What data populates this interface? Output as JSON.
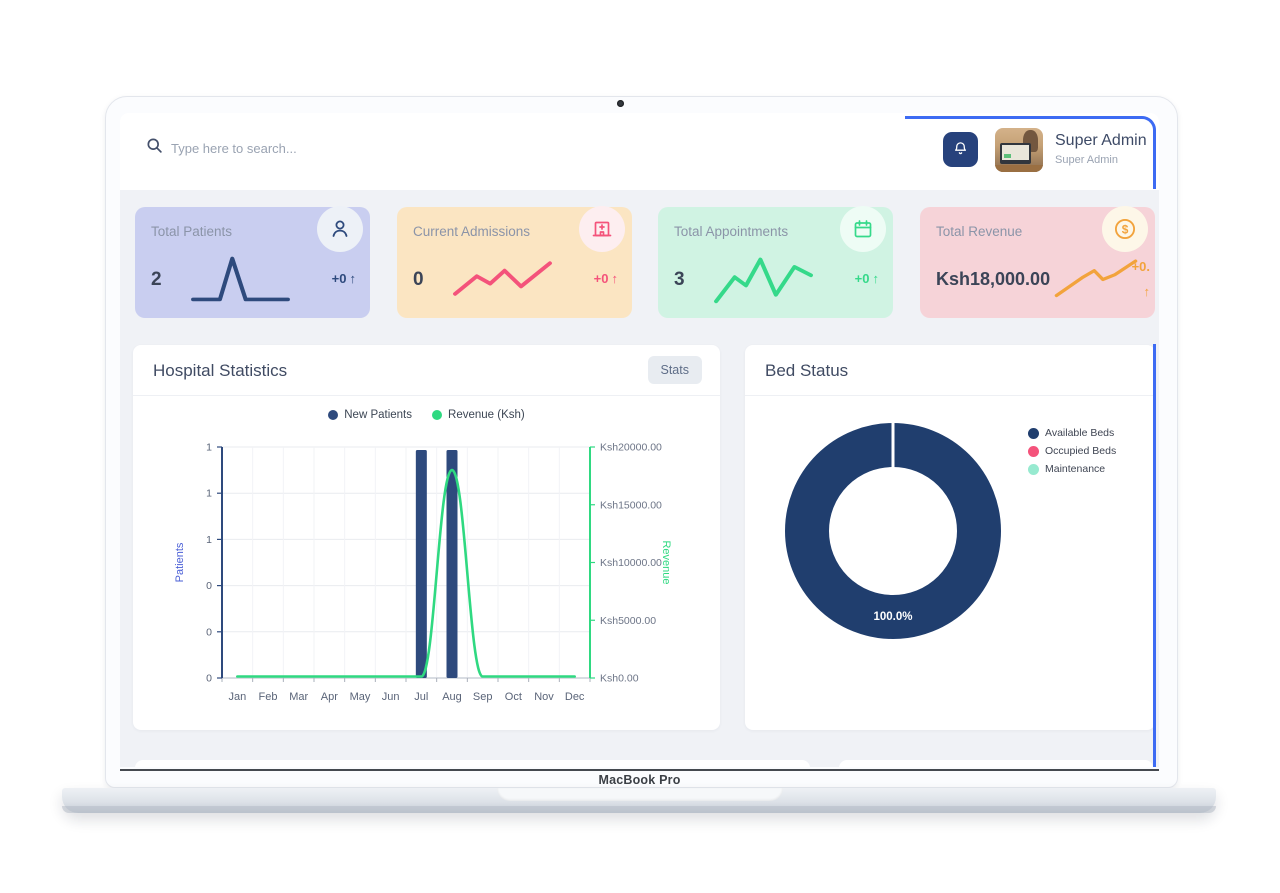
{
  "device": {
    "label": "MacBook Pro"
  },
  "header": {
    "search_placeholder": "Type here to search...",
    "user_name": "Super Admin",
    "user_role": "Super Admin",
    "accent_outline_color": "#3d6bf3"
  },
  "stat_cards": [
    {
      "title": "Total Patients",
      "value": "2",
      "change": "+0",
      "arrow": "↑",
      "icon": "user-icon",
      "bg": "#c9cef0",
      "accent": "#2e4a7d",
      "icon_bg": "#edf1f7",
      "icon_color": "#2e4a7d",
      "spark": [
        [
          4,
          50
        ],
        [
          30,
          50
        ],
        [
          42,
          6
        ],
        [
          55,
          50
        ],
        [
          96,
          50
        ]
      ]
    },
    {
      "title": "Current Admissions",
      "value": "0",
      "change": "+0",
      "arrow": "↑",
      "icon": "hospital-icon",
      "bg": "#fbe5c2",
      "accent": "#f4537b",
      "icon_bg": "#fdeef0",
      "icon_color": "#f4537b",
      "spark": [
        [
          4,
          44
        ],
        [
          25,
          25
        ],
        [
          38,
          33
        ],
        [
          52,
          19
        ],
        [
          68,
          36
        ],
        [
          96,
          11
        ]
      ]
    },
    {
      "title": "Total Appointments",
      "value": "3",
      "change": "+0",
      "arrow": "↑",
      "icon": "calendar-icon",
      "bg": "#d0f3e3",
      "accent": "#35d98a",
      "icon_bg": "#eefcf5",
      "icon_color": "#35d98a",
      "spark": [
        [
          4,
          52
        ],
        [
          22,
          26
        ],
        [
          33,
          35
        ],
        [
          47,
          7
        ],
        [
          62,
          45
        ],
        [
          80,
          15
        ],
        [
          96,
          24
        ]
      ]
    },
    {
      "title": "Total Revenue",
      "value": "Ksh18,000.00",
      "change": "+0.",
      "arrow": "↑",
      "icon": "dollar-icon",
      "bg": "#f6d3d8",
      "accent": "#f2a33c",
      "icon_bg": "#fdf7e8",
      "icon_color": "#f2a33c",
      "spark": [
        [
          4,
          48
        ],
        [
          35,
          25
        ],
        [
          48,
          17
        ],
        [
          58,
          28
        ],
        [
          72,
          22
        ],
        [
          96,
          5
        ]
      ]
    }
  ],
  "hospital_stats_panel": {
    "title": "Hospital Statistics",
    "button_label": "Stats"
  },
  "bed_status_panel": {
    "title": "Bed Status",
    "center_label": "100.0%",
    "legend": [
      {
        "label": "Available Beds",
        "color": "#203e6e"
      },
      {
        "label": "Occupied Beds",
        "color": "#f4537b"
      },
      {
        "label": "Maintenance",
        "color": "#97ead0"
      }
    ]
  },
  "chart_data": [
    {
      "type": "bar",
      "title": "Hospital Statistics",
      "categories": [
        "Jan",
        "Feb",
        "Mar",
        "Apr",
        "May",
        "Jun",
        "Jul",
        "Aug",
        "Sep",
        "Oct",
        "Nov",
        "Dec"
      ],
      "series": [
        {
          "name": "New Patients",
          "type": "bar",
          "axis": "left",
          "color": "#2e4a7d",
          "values": [
            0,
            0,
            0,
            0,
            0,
            0,
            1,
            1,
            0,
            0,
            0,
            0
          ]
        },
        {
          "name": "Revenue (Ksh)",
          "type": "line",
          "axis": "right",
          "color": "#2fd981",
          "values": [
            0,
            0,
            0,
            0,
            0,
            0,
            0,
            18000,
            0,
            0,
            0,
            0
          ]
        }
      ],
      "left_axis": {
        "label": "Patients",
        "range": [
          0,
          1
        ],
        "ticks": [
          "1",
          "1",
          "1",
          "0",
          "0",
          "0"
        ],
        "color": "#2e4a7d",
        "title_color": "#4a5fd6"
      },
      "right_axis": {
        "label": "Revenue",
        "range": [
          0,
          20000
        ],
        "ticks": [
          "Ksh20000.00",
          "Ksh15000.00",
          "Ksh10000.00",
          "Ksh5000.00",
          "Ksh0.00"
        ],
        "color": "#2fd981"
      },
      "legend_position": "top",
      "grid": true
    },
    {
      "type": "pie",
      "title": "Bed Status",
      "labels": [
        "Available Beds",
        "Occupied Beds",
        "Maintenance"
      ],
      "values": [
        100,
        0,
        0
      ],
      "colors": [
        "#203e6e",
        "#f4537b",
        "#97ead0"
      ],
      "center_label": "100.0%",
      "legend_position": "right"
    }
  ]
}
